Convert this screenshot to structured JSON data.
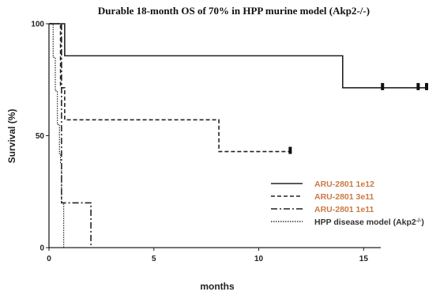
{
  "chart_data": {
    "type": "line",
    "title": "Durable 18-month OS of 70% in HPP murine model (Akp2-/-)",
    "xlabel": "months",
    "ylabel": "Survival (%)",
    "xlim": [
      0,
      18
    ],
    "ylim": [
      0,
      100
    ],
    "x_ticks": [
      0,
      5,
      10,
      15
    ],
    "y_ticks": [
      0,
      50,
      100
    ],
    "grid": false,
    "legend_position": "bottom-right",
    "series": [
      {
        "name": "ARU-2801 1e12",
        "style": "solid",
        "color": "#222222",
        "label_color": "#cc7a45",
        "x": [
          0,
          0.75,
          0.75,
          14.0,
          14.0,
          18.0
        ],
        "y": [
          100,
          100,
          85.7,
          85.7,
          71.4,
          71.4
        ],
        "censor_x": [
          15.9,
          17.6,
          18.0
        ]
      },
      {
        "name": "ARU-2801 3e11",
        "style": "dashed",
        "color": "#222222",
        "label_color": "#cc7a45",
        "x": [
          0,
          0.55,
          0.55,
          0.75,
          0.75,
          8.1,
          8.1,
          11.5
        ],
        "y": [
          100,
          100,
          71.4,
          71.4,
          57.1,
          57.1,
          42.9,
          42.9
        ],
        "censor_x": [
          11.5
        ]
      },
      {
        "name": "ARU-2801 1e11",
        "style": "dashdot",
        "color": "#222222",
        "label_color": "#cc7a45",
        "x": [
          0,
          0.6,
          0.6,
          2.0,
          2.0
        ],
        "y": [
          100,
          100,
          20,
          20,
          0
        ],
        "censor_x": []
      },
      {
        "name": "HPP disease model (Akp2",
        "name_superscript": "-/-",
        "name_suffix": ")",
        "style": "dotted",
        "color": "#333333",
        "label_color": "#333333",
        "x": [
          0,
          0.2,
          0.2,
          0.3,
          0.3,
          0.4,
          0.4,
          0.5,
          0.5,
          0.55,
          0.55,
          0.6,
          0.6,
          0.7,
          0.7
        ],
        "y": [
          100,
          100,
          85,
          85,
          70,
          70,
          55,
          55,
          42,
          42,
          38,
          38,
          20,
          20,
          0
        ],
        "censor_x": []
      }
    ]
  }
}
